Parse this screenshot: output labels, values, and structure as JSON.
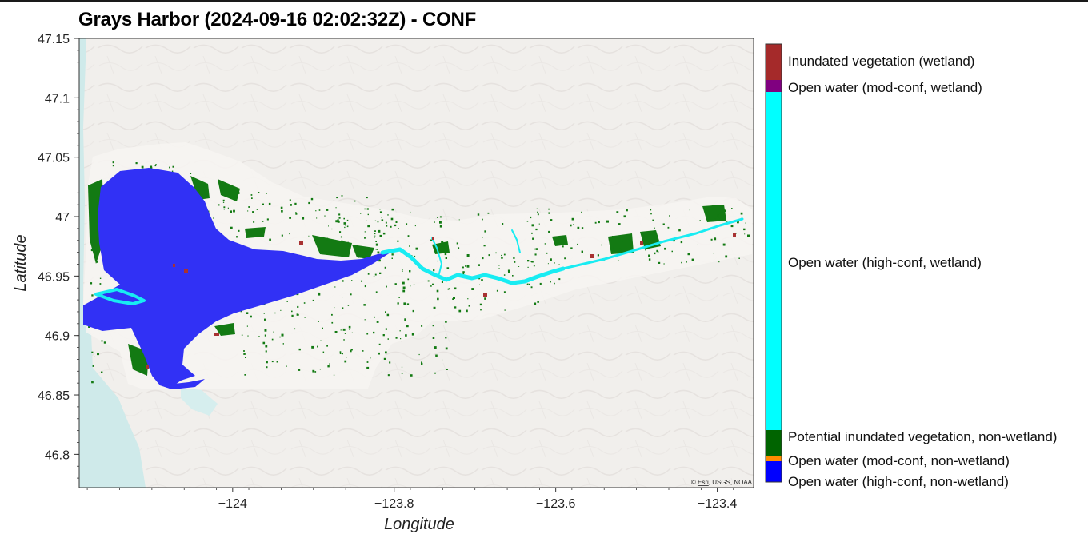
{
  "title": "Grays Harbor (2024-09-16 02:02:32Z) - CONF",
  "map": {
    "xlabel": "Longitude",
    "ylabel": "Latitude",
    "xlim": [
      -124.19,
      -123.355
    ],
    "ylim": [
      46.772,
      47.15
    ],
    "x_ticks": [
      -124,
      -123.8,
      -123.6,
      -123.4
    ],
    "x_tick_labels": [
      "−124",
      "−123.8",
      "−123.6",
      "−123.4"
    ],
    "y_ticks": [
      47.15,
      47.1,
      47.05,
      47,
      46.95,
      46.9,
      46.85,
      46.8
    ],
    "y_tick_labels": [
      "47.15",
      "47.1",
      "47.05",
      "47",
      "46.95",
      "46.9",
      "46.85",
      "46.8"
    ],
    "attribution": {
      "prefix": "© ",
      "link": "Esri",
      "rest": ", USGS, NOAA"
    }
  },
  "legend": {
    "items": [
      {
        "label": "Inundated vegetation (wetland)",
        "color": "#a52a2a"
      },
      {
        "label": "Open water (mod-conf, wetland)",
        "color": "#800080"
      },
      {
        "label": "Open water (high-conf, wetland)",
        "color": "#00ffff"
      },
      {
        "label": "Potential inundated vegetation, non-wetland)",
        "color": "#006400"
      },
      {
        "label": "Open water (mod-conf, non-wetland)",
        "color": "#ff8c00"
      },
      {
        "label": "Open water (high-conf, non-wetland)",
        "color": "#0000ff"
      }
    ]
  },
  "colors": {
    "ocean": "#cfeaea",
    "land": "#f1efec",
    "open_water_high_conf_non_wetland": "#3131f5",
    "open_water_high_conf_wetland": "#18ecf2",
    "potential_inundated_vegetation": "#137a13",
    "inundated_vegetation_wetland": "#a83232"
  }
}
